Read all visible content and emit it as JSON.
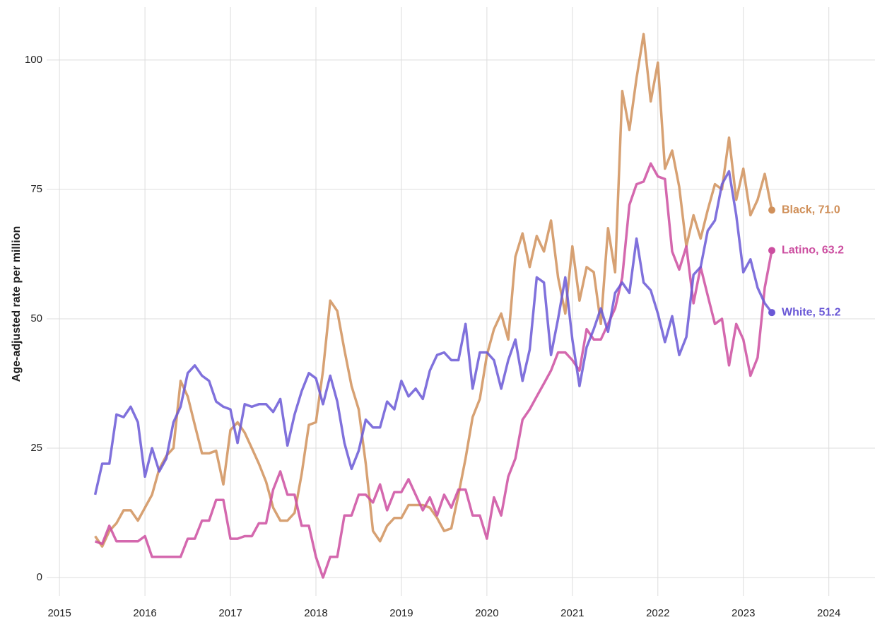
{
  "chart_data": {
    "type": "line",
    "y_label": "Age-adjusted rate per million",
    "x": [
      2015.417,
      2015.5,
      2015.583,
      2015.667,
      2015.75,
      2015.833,
      2015.917,
      2016.0,
      2016.083,
      2016.167,
      2016.25,
      2016.333,
      2016.417,
      2016.5,
      2016.583,
      2016.667,
      2016.75,
      2016.833,
      2016.917,
      2017.0,
      2017.083,
      2017.167,
      2017.25,
      2017.333,
      2017.417,
      2017.5,
      2017.583,
      2017.667,
      2017.75,
      2017.833,
      2017.917,
      2018.0,
      2018.083,
      2018.167,
      2018.25,
      2018.333,
      2018.417,
      2018.5,
      2018.583,
      2018.667,
      2018.75,
      2018.833,
      2018.917,
      2019.0,
      2019.083,
      2019.167,
      2019.25,
      2019.333,
      2019.417,
      2019.5,
      2019.583,
      2019.667,
      2019.75,
      2019.833,
      2019.917,
      2020.0,
      2020.083,
      2020.167,
      2020.25,
      2020.333,
      2020.417,
      2020.5,
      2020.583,
      2020.667,
      2020.75,
      2020.833,
      2020.917,
      2021.0,
      2021.083,
      2021.167,
      2021.25,
      2021.333,
      2021.417,
      2021.5,
      2021.583,
      2021.667,
      2021.75,
      2021.833,
      2021.917,
      2022.0,
      2022.083,
      2022.167,
      2022.25,
      2022.333,
      2022.417,
      2022.5,
      2022.583,
      2022.667,
      2022.75,
      2022.833,
      2022.917,
      2023.0,
      2023.083,
      2023.167,
      2023.25,
      2023.333
    ],
    "series": [
      {
        "label": "Black, 71.0",
        "color": "#d0905a",
        "values": [
          8,
          6,
          9,
          10.5,
          13,
          13,
          11,
          13.5,
          16,
          21,
          23.5,
          25,
          38,
          35,
          29.5,
          24,
          24,
          24.5,
          18,
          28.5,
          30,
          28,
          25,
          22,
          18.5,
          13.5,
          11,
          11,
          12.5,
          20,
          29.5,
          30,
          40,
          53.5,
          51.5,
          44,
          37,
          32.5,
          22,
          9,
          7,
          10,
          11.5,
          11.5,
          14,
          14,
          14,
          13.5,
          11.5,
          9,
          9.5,
          16,
          23,
          31,
          34.5,
          43,
          48,
          51,
          46,
          62,
          66.5,
          60,
          66,
          63,
          69,
          58,
          51,
          64,
          53.5,
          60,
          59,
          49,
          67.5,
          59,
          94,
          86.5,
          96.5,
          105,
          92,
          99.5,
          79,
          82.5,
          75.5,
          64,
          70,
          65.5,
          71,
          76,
          75,
          85,
          73,
          79,
          70,
          73,
          78,
          71
        ]
      },
      {
        "label": "Latino, 63.2",
        "color": "#cc4ea0",
        "values": [
          7,
          6.5,
          10,
          7,
          7,
          7,
          7,
          8,
          4,
          4,
          4,
          4,
          4,
          7.5,
          7.5,
          11,
          11,
          15,
          15,
          7.5,
          7.5,
          8,
          8,
          10.5,
          10.5,
          17,
          20.5,
          16,
          16,
          10,
          10,
          4,
          0,
          4,
          4,
          12,
          12,
          16,
          16,
          14.5,
          18,
          13,
          16.5,
          16.5,
          19,
          16,
          13,
          15.5,
          12,
          16,
          13.5,
          17,
          17,
          12,
          12,
          7.5,
          15.5,
          12,
          19.5,
          23,
          30.5,
          32.5,
          35,
          37.5,
          40,
          43.5,
          43.5,
          42,
          40,
          48,
          46,
          46,
          49,
          52,
          58,
          72,
          76,
          76.5,
          80,
          77.5,
          77,
          63,
          59.5,
          64,
          53,
          60,
          54.5,
          49,
          50,
          41,
          49,
          46,
          39,
          42.5,
          56,
          63.2
        ]
      },
      {
        "label": "White, 51.2",
        "color": "#6a58d6",
        "values": [
          16,
          22,
          22,
          31.5,
          31,
          33,
          30,
          19.5,
          25,
          20.5,
          23,
          30,
          33,
          39.5,
          41,
          39,
          38,
          34,
          33,
          32.5,
          26,
          33.5,
          33,
          33.5,
          33.5,
          32,
          34.5,
          25.5,
          31.5,
          36,
          39.5,
          38.5,
          33.5,
          39,
          34,
          26,
          21,
          24.5,
          30.5,
          29,
          29,
          34,
          32.5,
          38,
          35,
          36.5,
          34.5,
          40,
          43,
          43.5,
          42,
          42,
          49,
          36.5,
          43.5,
          43.5,
          42,
          36.5,
          42,
          46,
          38,
          44,
          58,
          57,
          43,
          50,
          58,
          46,
          37,
          44.5,
          48,
          52,
          47.5,
          55,
          57,
          55,
          65.5,
          57,
          55.5,
          51,
          45.5,
          50.5,
          43,
          46.5,
          58.5,
          60,
          67,
          69,
          76,
          78.5,
          70,
          59,
          61.5,
          56,
          53,
          51.2
        ]
      }
    ],
    "xlim": [
      2014.85,
      2024.54
    ],
    "xticks": [
      2015,
      2016,
      2017,
      2018,
      2019,
      2020,
      2021,
      2022,
      2023,
      2024
    ],
    "ylim": [
      -3,
      109
    ],
    "yticks": [
      0,
      25,
      50,
      75,
      100
    ],
    "grid": true
  }
}
